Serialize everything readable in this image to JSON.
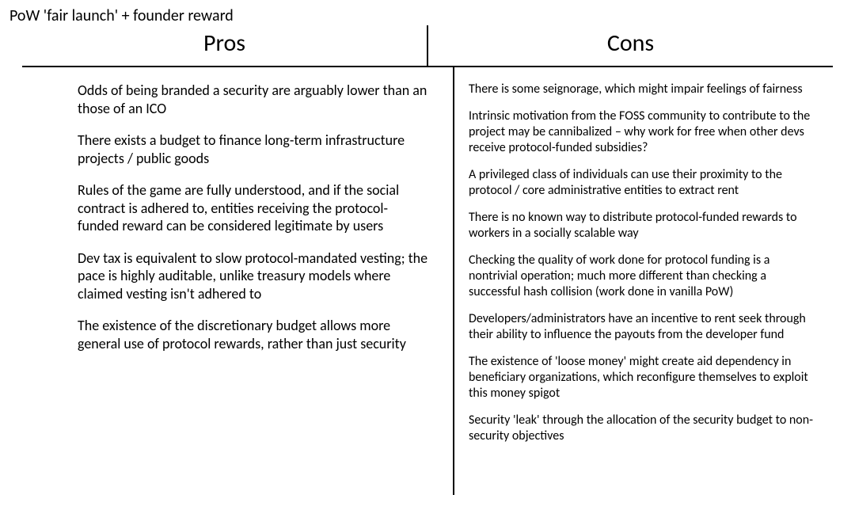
{
  "title": "PoW 'fair launch' + founder reward",
  "columns": {
    "pros": {
      "header": "Pros"
    },
    "cons": {
      "header": "Cons"
    }
  },
  "pros_items": [
    "Odds of being branded a security are arguably lower than an those of an ICO",
    "There exists a budget to finance long-term infrastructure projects / public goods",
    "Rules of the game are fully understood, and if the social contract is adhered to, entities receiving the protocol-funded reward can be considered legitimate by users",
    "Dev tax is equivalent to slow protocol-mandated vesting; the pace is highly auditable, unlike treasury models where claimed vesting isn't adhered to",
    "The existence of the discretionary budget allows more general use of protocol rewards, rather than just security"
  ],
  "cons_items": [
    "There is some seignorage, which might impair feelings of fairness",
    "Intrinsic motivation from the FOSS community to contribute to the project may be cannibalized – why work for free when other devs receive protocol-funded subsidies?",
    "A privileged class of individuals can use their proximity to the protocol / core administrative entities to extract rent",
    "There is no known way to distribute protocol-funded rewards to workers in a socially scalable way",
    "Checking the quality of work done for protocol funding is a nontrivial operation; much more different than checking a successful hash collision (work done in vanilla PoW)",
    "Developers/administrators have an incentive to rent seek through their ability to influence the payouts from the developer fund",
    "The existence of 'loose money' might create aid dependency in beneficiary organizations, which reconfigure themselves to exploit this money spigot",
    "Security 'leak' through the allocation of the security budget to non-security objectives"
  ],
  "style": {
    "background_color": "#ffffff",
    "text_color": "#000000",
    "divider_color": "#000000",
    "header_fontsize": 30,
    "title_fontsize": 20,
    "pros_body_fontsize": 18,
    "cons_body_fontsize": 16,
    "font_family": "Calibri"
  }
}
